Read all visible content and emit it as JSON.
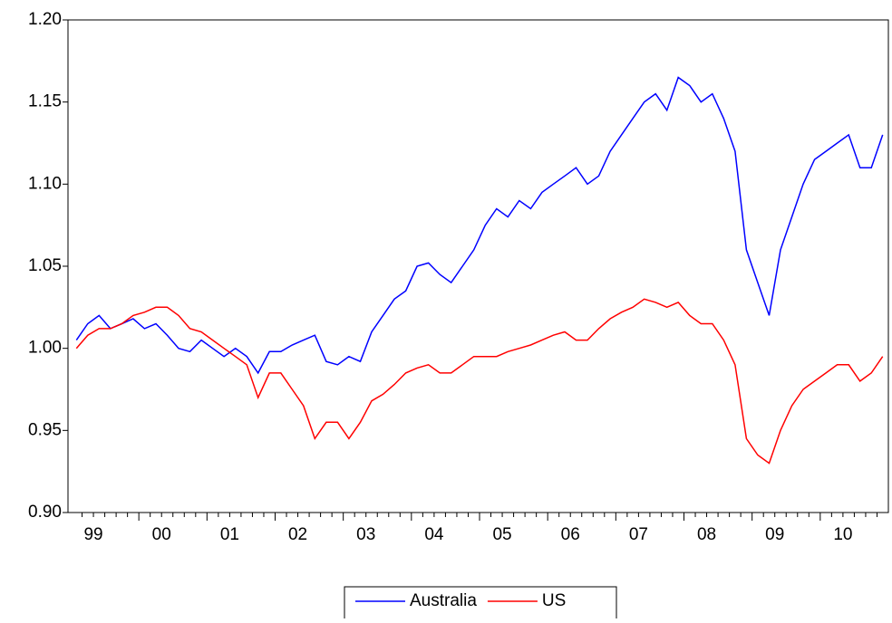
{
  "chart_data": {
    "type": "line",
    "categories": [
      null,
      null,
      "99",
      null,
      null,
      null,
      null,
      null,
      "00",
      null,
      null,
      null,
      null,
      null,
      "01",
      null,
      null,
      null,
      null,
      null,
      "02",
      null,
      null,
      null,
      null,
      null,
      "03",
      null,
      null,
      null,
      null,
      null,
      "04",
      null,
      null,
      null,
      null,
      null,
      "05",
      null,
      null,
      null,
      null,
      null,
      "06",
      null,
      null,
      null,
      null,
      null,
      "07",
      null,
      null,
      null,
      null,
      null,
      "08",
      null,
      null,
      null,
      null,
      null,
      "09",
      null,
      null,
      null,
      null,
      null,
      "10",
      null,
      null,
      null
    ],
    "series": [
      {
        "name": "Australia",
        "color": "#0000ff",
        "values": [
          1.005,
          1.015,
          1.02,
          1.012,
          1.015,
          1.018,
          1.012,
          1.015,
          1.008,
          1.0,
          0.998,
          1.005,
          1.0,
          0.995,
          1.0,
          0.995,
          0.985,
          0.998,
          0.998,
          1.002,
          1.005,
          1.008,
          0.992,
          0.99,
          0.995,
          0.992,
          1.01,
          1.02,
          1.03,
          1.035,
          1.05,
          1.052,
          1.045,
          1.04,
          1.05,
          1.06,
          1.075,
          1.085,
          1.08,
          1.09,
          1.085,
          1.095,
          1.1,
          1.105,
          1.11,
          1.1,
          1.105,
          1.12,
          1.13,
          1.14,
          1.15,
          1.155,
          1.145,
          1.165,
          1.16,
          1.15,
          1.155,
          1.14,
          1.12,
          1.06,
          1.04,
          1.02,
          1.06,
          1.08,
          1.1,
          1.115,
          1.12,
          1.125,
          1.13,
          1.11,
          1.11,
          1.13
        ]
      },
      {
        "name": "US",
        "color": "#ff0000",
        "values": [
          1.0,
          1.008,
          1.012,
          1.012,
          1.015,
          1.02,
          1.022,
          1.025,
          1.025,
          1.02,
          1.012,
          1.01,
          1.005,
          1.0,
          0.995,
          0.99,
          0.97,
          0.985,
          0.985,
          0.975,
          0.965,
          0.945,
          0.955,
          0.955,
          0.945,
          0.955,
          0.968,
          0.972,
          0.978,
          0.985,
          0.988,
          0.99,
          0.985,
          0.985,
          0.99,
          0.995,
          0.995,
          0.995,
          0.998,
          1.0,
          1.002,
          1.005,
          1.008,
          1.01,
          1.005,
          1.005,
          1.012,
          1.018,
          1.022,
          1.025,
          1.03,
          1.028,
          1.025,
          1.028,
          1.02,
          1.015,
          1.015,
          1.005,
          0.99,
          0.945,
          0.935,
          0.93,
          0.95,
          0.965,
          0.975,
          0.98,
          0.985,
          0.99,
          0.99,
          0.98,
          0.985,
          0.995
        ]
      }
    ],
    "ylim": [
      0.9,
      1.2
    ],
    "yticks": [
      {
        "value": 0.9,
        "label": "0.90"
      },
      {
        "value": 0.95,
        "label": "0.95"
      },
      {
        "value": 1.0,
        "label": "1.00"
      },
      {
        "value": 1.05,
        "label": "1.05"
      },
      {
        "value": 1.1,
        "label": "1.10"
      },
      {
        "value": 1.15,
        "label": "1.15"
      },
      {
        "value": 1.2,
        "label": "1.20"
      }
    ],
    "legend": "bottom"
  }
}
